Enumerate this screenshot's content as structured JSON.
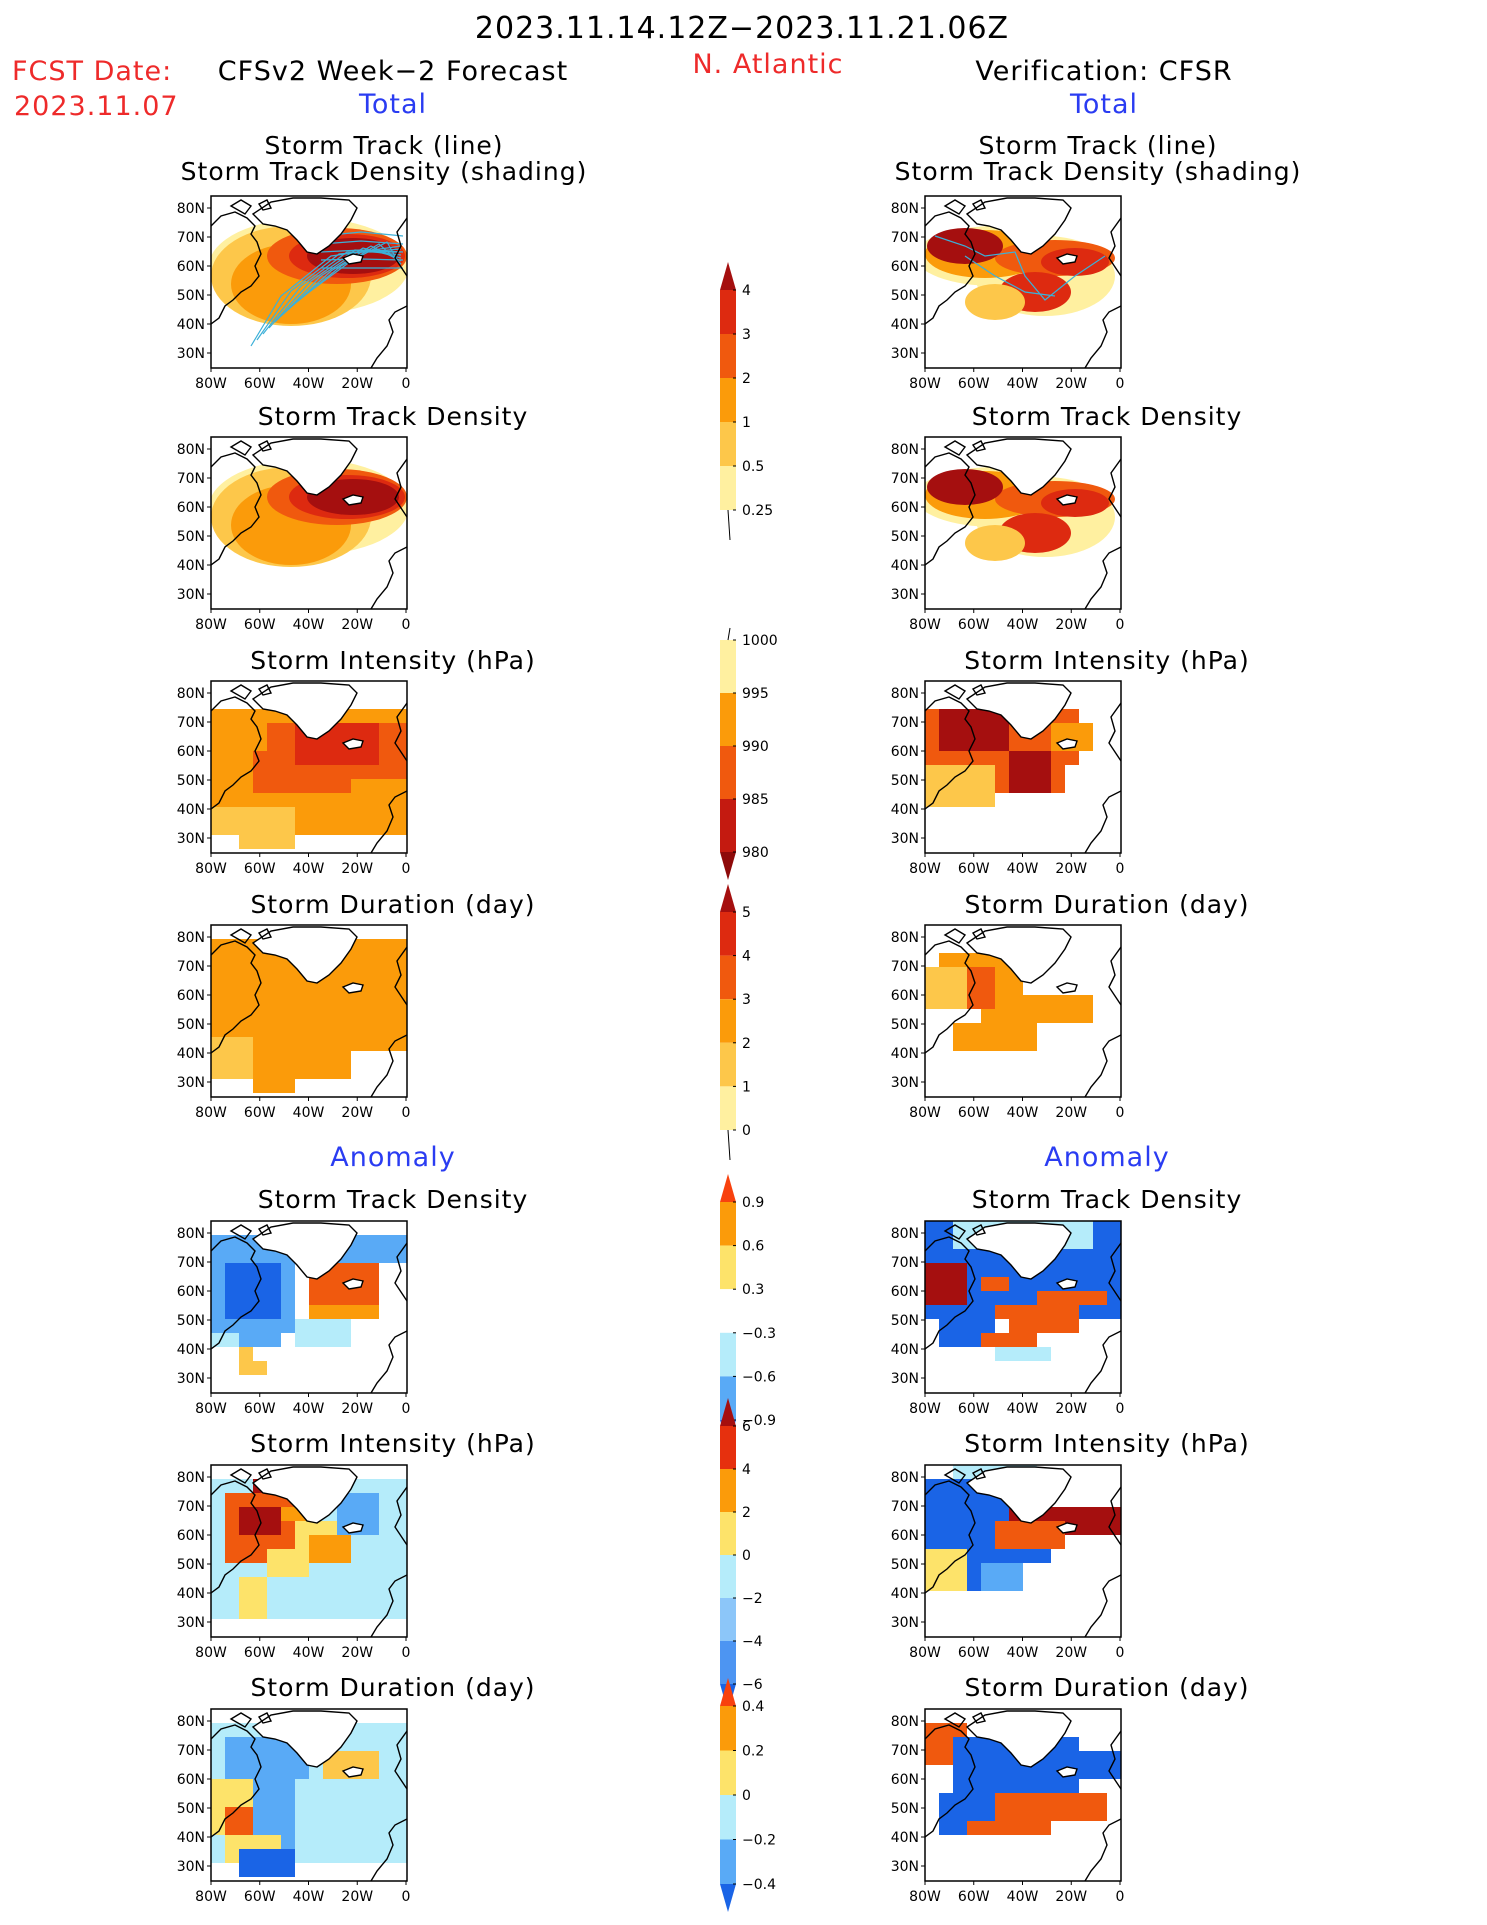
{
  "header": {
    "date_range": "2023.11.14.12Z−2023.11.21.06Z",
    "fcst_label": "FCST Date:",
    "fcst_date": "2023.11.07",
    "left_title": "CFSv2 Week−2 Forecast",
    "region": "N. Atlantic",
    "right_title": "Verification: CFSR"
  },
  "sections": {
    "total": "Total",
    "anomaly": "Anomaly"
  },
  "panel_titles": {
    "track_line": "Storm Track (line)",
    "track_density_shading": "Storm Track Density (shading)",
    "track_density": "Storm Track Density",
    "intensity": "Storm Intensity (hPa)",
    "duration": "Storm Duration (day)"
  },
  "axes": {
    "lat_labels": [
      "80N",
      "70N",
      "60N",
      "50N",
      "40N",
      "30N"
    ],
    "lon_labels": [
      "80W",
      "60W",
      "40W",
      "20W",
      "0"
    ]
  },
  "colorbars": [
    {
      "id": "track-density-total",
      "labels": [
        "4",
        "3",
        "2",
        "1",
        "0.5",
        "0.25"
      ],
      "colors": [
        "#a50f0f",
        "#dd2a10",
        "#f0590e",
        "#fb9b0a",
        "#fdc74a",
        "#fff0a0"
      ]
    },
    {
      "id": "intensity-total",
      "labels": [
        "1000",
        "995",
        "990",
        "985",
        "980"
      ],
      "colors": [
        "#fff0a0",
        "#fb9b0a",
        "#f0590e",
        "#c41a10",
        "#8e0a0a"
      ]
    },
    {
      "id": "duration-total",
      "labels": [
        "5",
        "4",
        "3",
        "2",
        "1",
        "0"
      ],
      "colors": [
        "#a50f0f",
        "#dd2a10",
        "#f0590e",
        "#fb9b0a",
        "#fdc74a",
        "#fff0a0"
      ]
    },
    {
      "id": "track-density-anom",
      "labels": [
        "0.9",
        "0.6",
        "0.3",
        "−0.3",
        "−0.6",
        "−0.9"
      ],
      "colors": [
        "#f8410e",
        "#fb9b0a",
        "#fde36a",
        "#ffffff",
        "#b5ecfa",
        "#59aaf6",
        "#1a64e6"
      ]
    },
    {
      "id": "intensity-anom",
      "labels": [
        "6",
        "4",
        "2",
        "0",
        "−2",
        "−4",
        "−6"
      ],
      "colors": [
        "#a50f0f",
        "#e6300e",
        "#fb9b0a",
        "#fde36a",
        "#b5ecfa",
        "#8cc6f9",
        "#4d95f2",
        "#1a64e6"
      ]
    },
    {
      "id": "duration-anom",
      "labels": [
        "0.4",
        "0.2",
        "0",
        "−0.2",
        "−0.4"
      ],
      "colors": [
        "#f8410e",
        "#fb9b0a",
        "#fde36a",
        "#b5ecfa",
        "#59aaf6",
        "#1a64e6"
      ]
    }
  ]
}
